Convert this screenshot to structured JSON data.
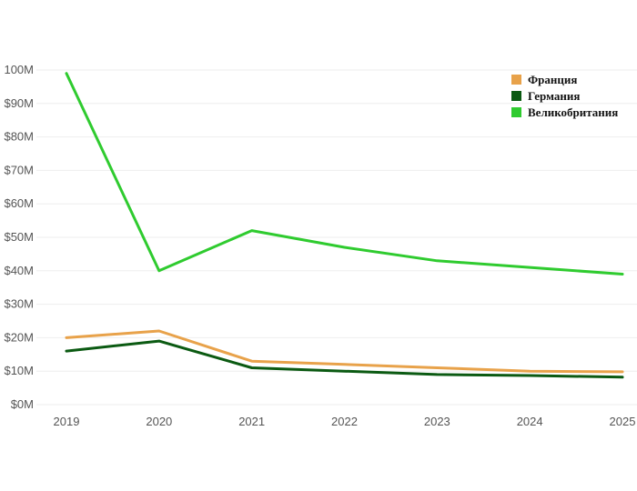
{
  "chart_data": {
    "type": "line",
    "title": "",
    "xlabel": "",
    "ylabel": "",
    "x": [
      "2019",
      "2020",
      "2021",
      "2022",
      "2023",
      "2024",
      "2025"
    ],
    "ylim": [
      0,
      100
    ],
    "y_ticks": [
      {
        "value": 0,
        "label": "$0M"
      },
      {
        "value": 10,
        "label": "$10M"
      },
      {
        "value": 20,
        "label": "$20M"
      },
      {
        "value": 30,
        "label": "$30M"
      },
      {
        "value": 40,
        "label": "$40M"
      },
      {
        "value": 50,
        "label": "$50M"
      },
      {
        "value": 60,
        "label": "$60M"
      },
      {
        "value": 70,
        "label": "$70M"
      },
      {
        "value": 80,
        "label": "$80M"
      },
      {
        "value": 90,
        "label": "$90M"
      },
      {
        "value": 100,
        "label": "100M"
      }
    ],
    "grid": true,
    "legend_position": "top-right",
    "series": [
      {
        "name": "Франция",
        "color": "#E8A24A",
        "values": [
          20,
          22,
          13,
          12,
          11,
          10,
          9.8
        ]
      },
      {
        "name": "Германия",
        "color": "#0B5A12",
        "values": [
          16,
          19,
          11,
          10,
          9,
          8.7,
          8.2
        ]
      },
      {
        "name": "Великобритания",
        "color": "#2FCB2F",
        "values": [
          99,
          40,
          52,
          47,
          43,
          41,
          39
        ]
      }
    ]
  }
}
